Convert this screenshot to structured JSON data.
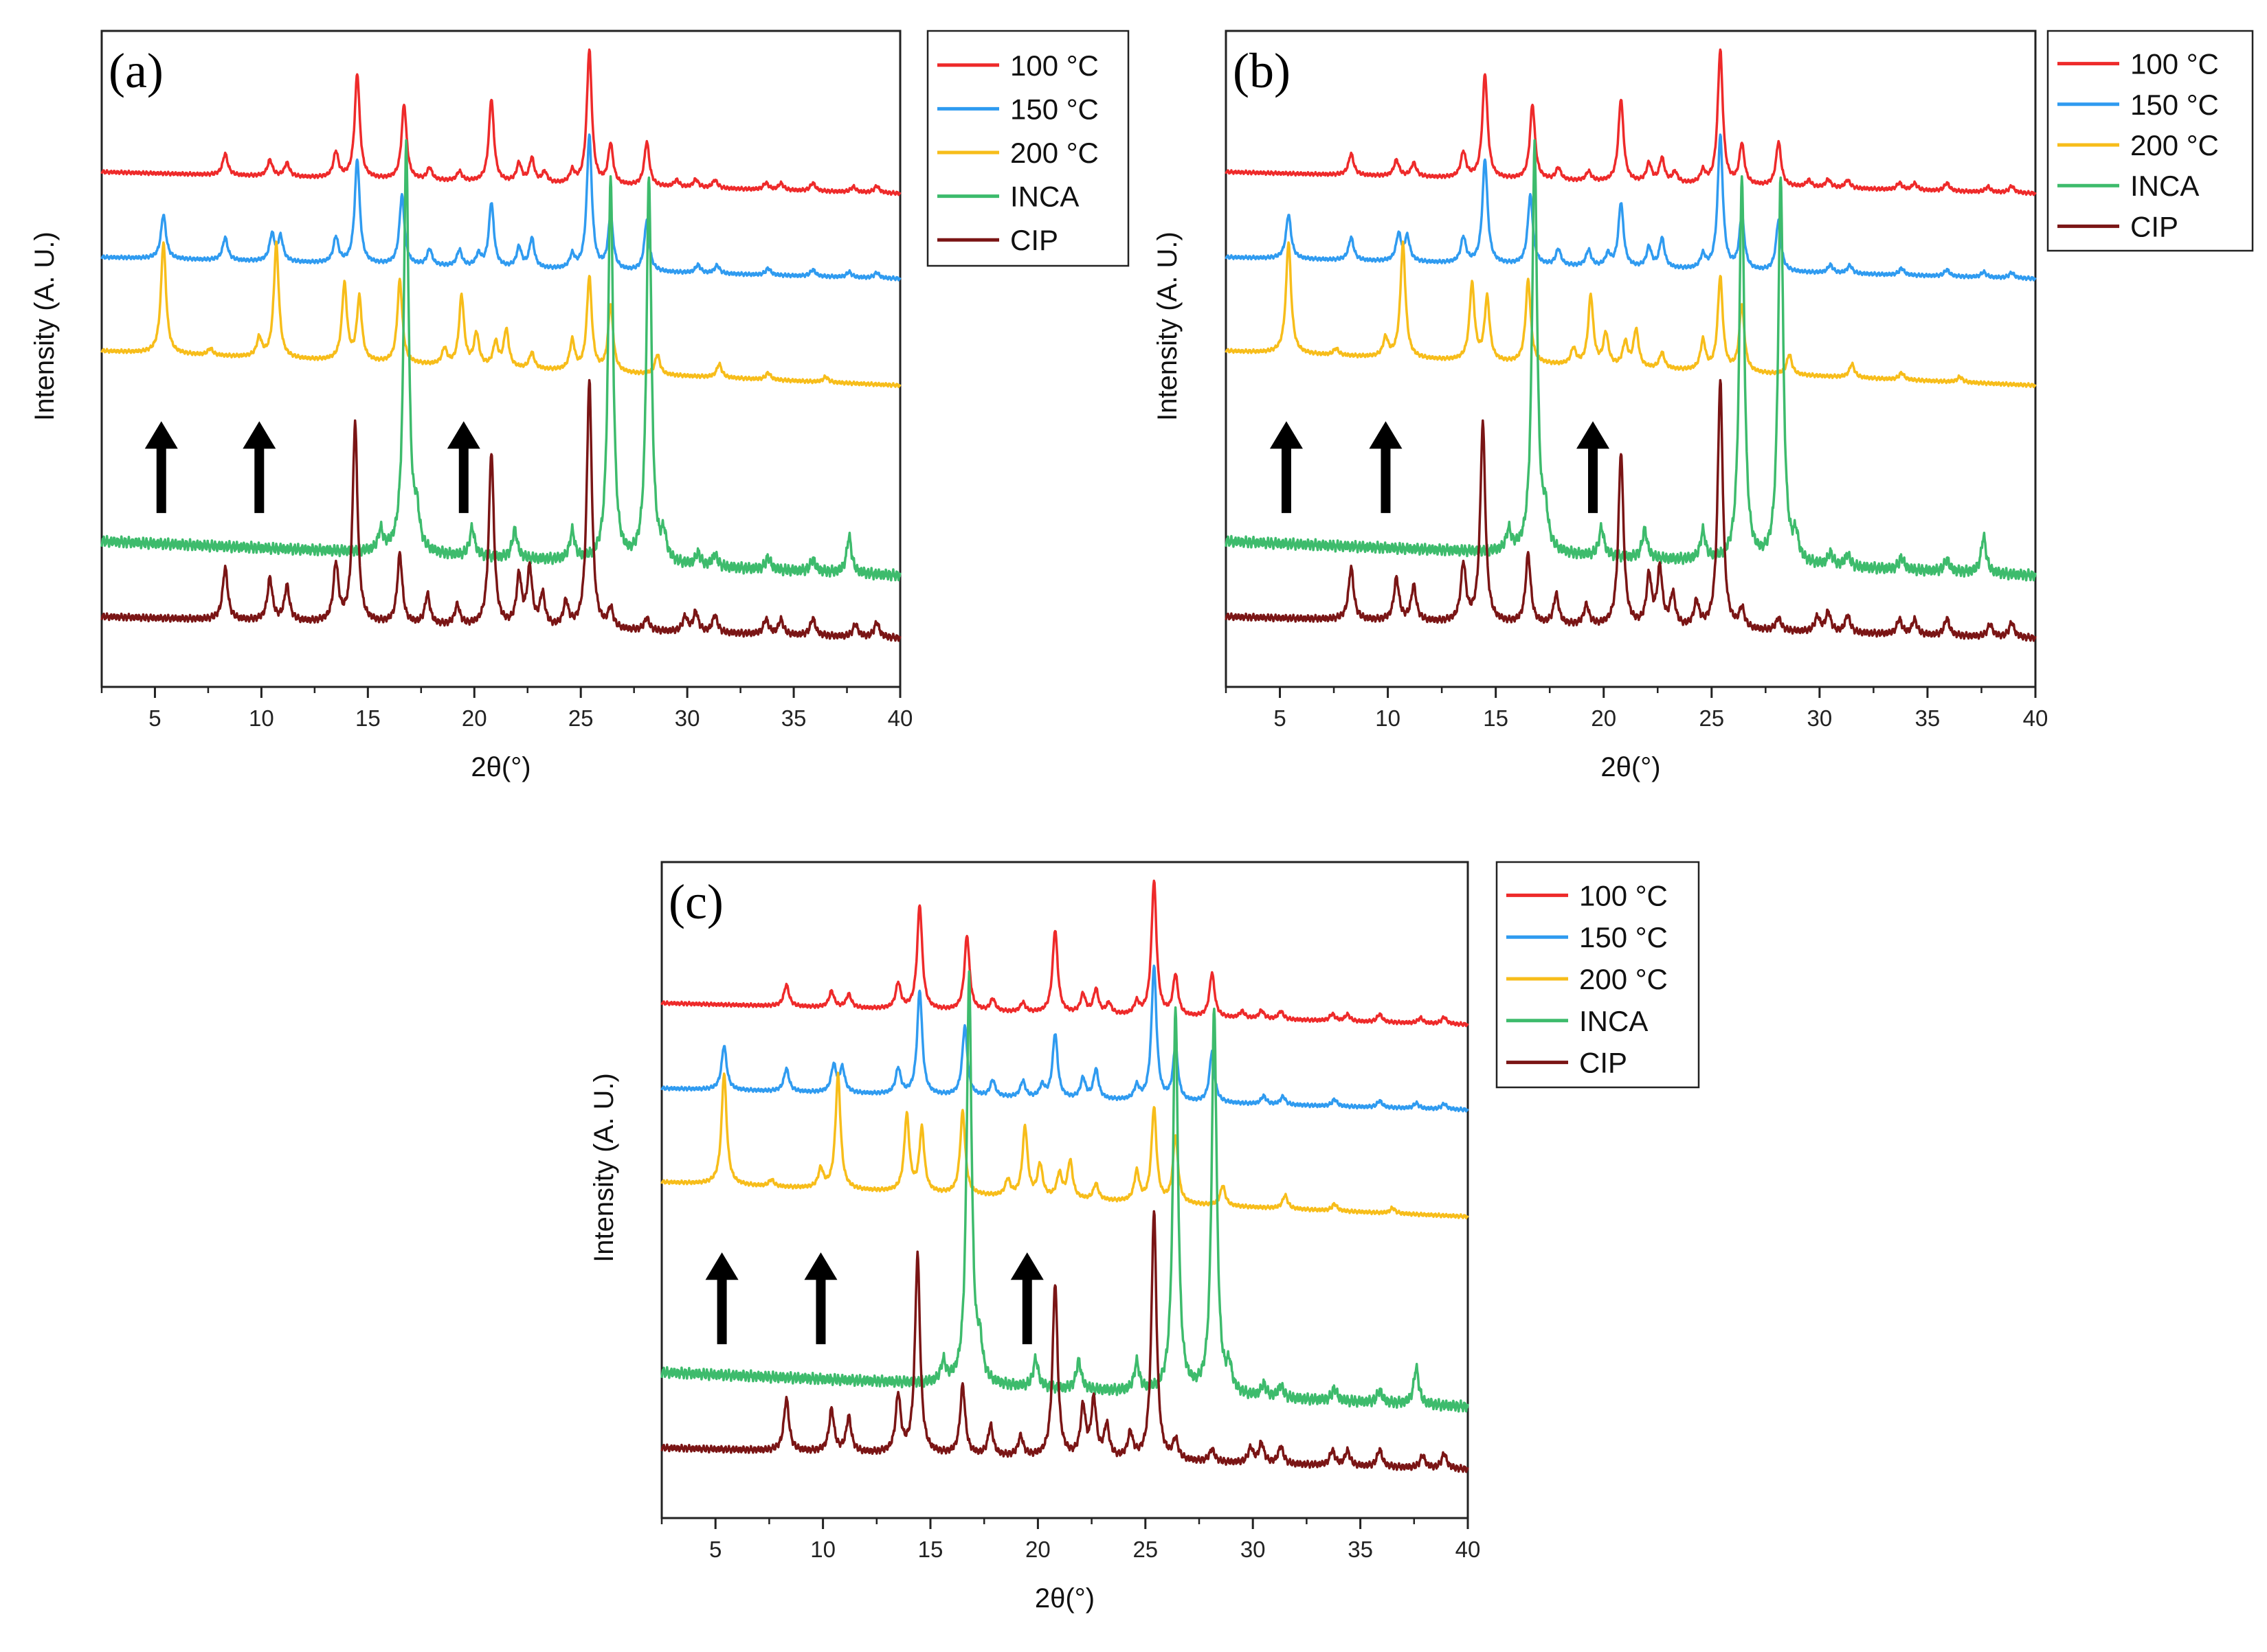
{
  "chart_data": [
    {
      "type": "line",
      "panel_label": "(a)",
      "xlabel": "2θ(°)",
      "ylabel": "Intensity (A. U.)",
      "xlim": [
        2.5,
        40
      ],
      "xticks": [
        "5",
        "10",
        "15",
        "20",
        "25",
        "30",
        "35",
        "40"
      ],
      "legend": [
        "100 °C",
        "150 °C",
        "200 °C",
        "INCA",
        "CIP"
      ],
      "arrows_at_2theta": [
        5.3,
        9.9,
        19.5
      ]
    },
    {
      "type": "line",
      "panel_label": "(b)",
      "xlabel": "2θ(°)",
      "ylabel": "Intensity (A. U.)",
      "xlim": [
        2.5,
        40
      ],
      "xticks": [
        "5",
        "10",
        "15",
        "20",
        "25",
        "30",
        "35",
        "40"
      ],
      "legend": [
        "100 °C",
        "150 °C",
        "200 °C",
        "INCA",
        "CIP"
      ],
      "arrows_at_2theta": [
        5.3,
        9.9,
        19.5
      ]
    },
    {
      "type": "line",
      "panel_label": "(c)",
      "xlabel": "2θ(°)",
      "ylabel": "Intensity (A. U.)",
      "xlim": [
        2.5,
        40
      ],
      "xticks": [
        "5",
        "10",
        "15",
        "20",
        "25",
        "30",
        "35",
        "40"
      ],
      "legend": [
        "100 °C",
        "150 °C",
        "200 °C",
        "INCA",
        "CIP"
      ],
      "arrows_at_2theta": [
        5.3,
        9.9,
        19.5
      ]
    }
  ],
  "series_styles": [
    {
      "name": "100 °C",
      "color": "#ee2a2a"
    },
    {
      "name": "150 °C",
      "color": "#2f9bf0"
    },
    {
      "name": "200 °C",
      "color": "#f7bd1a"
    },
    {
      "name": "INCA",
      "color": "#3dbb6c"
    },
    {
      "name": "CIP",
      "color": "#7a1515"
    }
  ],
  "patterns": {
    "100 °C": [
      [
        8.3,
        0.16
      ],
      [
        10.4,
        0.12
      ],
      [
        11.2,
        0.1
      ],
      [
        13.5,
        0.19
      ],
      [
        14.5,
        0.78
      ],
      [
        16.7,
        0.56
      ],
      [
        17.9,
        0.09
      ],
      [
        19.3,
        0.07
      ],
      [
        20.8,
        0.62
      ],
      [
        22.1,
        0.14
      ],
      [
        22.7,
        0.18
      ],
      [
        23.3,
        0.08
      ],
      [
        24.6,
        0.09
      ],
      [
        25.4,
        1.0
      ],
      [
        26.4,
        0.3
      ],
      [
        28.1,
        0.33
      ],
      [
        29.5,
        0.05
      ],
      [
        30.4,
        0.06
      ],
      [
        31.3,
        0.06
      ],
      [
        33.7,
        0.05
      ],
      [
        34.4,
        0.05
      ],
      [
        35.9,
        0.06
      ],
      [
        37.8,
        0.04
      ],
      [
        38.9,
        0.05
      ]
    ],
    "150 °C": [
      [
        5.4,
        0.33
      ],
      [
        8.3,
        0.17
      ],
      [
        10.5,
        0.2
      ],
      [
        10.9,
        0.18
      ],
      [
        13.5,
        0.19
      ],
      [
        14.5,
        0.78
      ],
      [
        16.6,
        0.52
      ],
      [
        17.9,
        0.12
      ],
      [
        19.3,
        0.12
      ],
      [
        20.2,
        0.09
      ],
      [
        20.8,
        0.48
      ],
      [
        22.1,
        0.15
      ],
      [
        22.7,
        0.22
      ],
      [
        24.6,
        0.1
      ],
      [
        25.4,
        1.0
      ],
      [
        26.4,
        0.4
      ],
      [
        28.1,
        0.38
      ],
      [
        30.5,
        0.06
      ],
      [
        31.4,
        0.06
      ],
      [
        33.8,
        0.05
      ],
      [
        35.9,
        0.05
      ],
      [
        37.6,
        0.04
      ],
      [
        38.9,
        0.04
      ]
    ],
    "200 °C": [
      [
        5.4,
        0.83
      ],
      [
        7.6,
        0.05
      ],
      [
        9.9,
        0.14
      ],
      [
        10.7,
        0.85
      ],
      [
        13.9,
        0.57
      ],
      [
        14.6,
        0.47
      ],
      [
        16.5,
        0.62
      ],
      [
        18.6,
        0.12
      ],
      [
        19.4,
        0.52
      ],
      [
        20.1,
        0.24
      ],
      [
        21.0,
        0.18
      ],
      [
        21.5,
        0.28
      ],
      [
        22.7,
        0.12
      ],
      [
        24.6,
        0.22
      ],
      [
        25.4,
        0.7
      ],
      [
        26.4,
        0.5
      ],
      [
        28.6,
        0.15
      ],
      [
        31.5,
        0.1
      ],
      [
        33.8,
        0.05
      ],
      [
        36.5,
        0.04
      ]
    ],
    "INCA": [
      [
        15.6,
        0.05
      ],
      [
        16.8,
        1.0
      ],
      [
        17.3,
        0.08
      ],
      [
        19.9,
        0.07
      ],
      [
        21.9,
        0.07
      ],
      [
        24.6,
        0.07
      ],
      [
        26.4,
        0.95
      ],
      [
        28.2,
        0.95
      ],
      [
        28.9,
        0.06
      ],
      [
        30.5,
        0.03
      ],
      [
        31.3,
        0.03
      ],
      [
        33.8,
        0.03
      ],
      [
        35.9,
        0.03
      ],
      [
        37.6,
        0.09
      ]
    ],
    "CIP": [
      [
        8.3,
        0.21
      ],
      [
        10.4,
        0.17
      ],
      [
        11.2,
        0.14
      ],
      [
        13.5,
        0.23
      ],
      [
        14.4,
        0.8
      ],
      [
        16.5,
        0.28
      ],
      [
        17.8,
        0.12
      ],
      [
        19.2,
        0.08
      ],
      [
        20.8,
        0.7
      ],
      [
        22.1,
        0.2
      ],
      [
        22.6,
        0.23
      ],
      [
        23.2,
        0.13
      ],
      [
        24.3,
        0.1
      ],
      [
        25.4,
        1.0
      ],
      [
        26.4,
        0.08
      ],
      [
        28.1,
        0.05
      ],
      [
        29.9,
        0.06
      ],
      [
        30.4,
        0.08
      ],
      [
        31.3,
        0.07
      ],
      [
        33.7,
        0.06
      ],
      [
        34.4,
        0.06
      ],
      [
        35.9,
        0.07
      ],
      [
        37.9,
        0.05
      ],
      [
        38.9,
        0.06
      ]
    ]
  }
}
